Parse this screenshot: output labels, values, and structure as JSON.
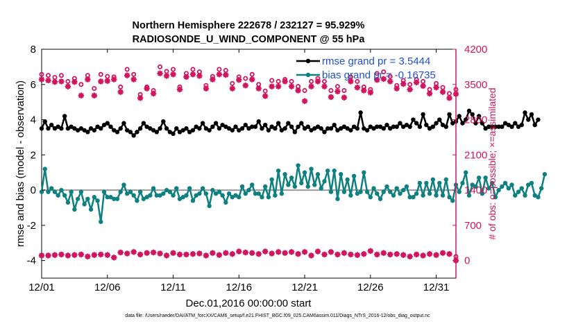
{
  "titles": {
    "line1": "Northern Hemisphere 222678 / 232127 = 95.929%",
    "line2": "RADIOSONDE_U_WIND_COMPONENT @ 55 hPa"
  },
  "axes": {
    "ylabel_left": "rmse and bias (model - observation)",
    "ylabel_right": "# of obs: o=possible; ×=assimilated",
    "xlabel": "Dec.01,2016 00:00:00 start",
    "footer": "data file: /Users/raeder/DAI/ATM_forcXX/CAM6_setup/f.e21.FHIST_BGC.f09_025.CAM6assim.011/Diags_NTrS_2016-12/obs_diag_output.nc"
  },
  "legend": {
    "rmse": "rmse grand pr = 3.5444",
    "bias": "bias grand pr = -0.16735"
  },
  "colors": {
    "rmse": "#000000",
    "bias": "#0e8080",
    "obs": "#d0155e",
    "zero_line": "#9a9a9a",
    "legend_text": "#1f4fd8"
  },
  "chart_data": {
    "type": "line",
    "title": "Northern Hemisphere 222678 / 232127 = 95.929% | RADIOSONDE_U_WIND_COMPONENT @ 55 hPa",
    "xlabel": "Dec.01,2016 00:00:00 start",
    "ylabel": "rmse and bias (model - observation)",
    "y2label": "# of obs: o=possible; ×=assimilated",
    "xlim": [
      1,
      32.5
    ],
    "ylim": [
      -5,
      8
    ],
    "y2lim": [
      -350,
      4200
    ],
    "x_ticks": [
      1,
      6,
      11,
      16,
      21,
      26,
      31
    ],
    "x_tick_labels": [
      "12/01",
      "12/06",
      "12/11",
      "12/16",
      "12/21",
      "12/26",
      "12/31"
    ],
    "y_ticks": [
      -4,
      -2,
      0,
      2,
      4,
      6,
      8
    ],
    "y_tick_labels": [
      "-4",
      "-2",
      "0",
      "2",
      "4",
      "6",
      "8"
    ],
    "y2_ticks": [
      0,
      700,
      1400,
      2100,
      2800,
      3500,
      4200
    ],
    "y2_tick_labels": [
      "0",
      "700",
      "1400",
      "2100",
      "2800",
      "3500",
      "4200"
    ],
    "series": [
      {
        "name": "rmse",
        "axis": "left",
        "start": 1,
        "step": 0.25,
        "values": [
          3.5,
          3.9,
          3.5,
          3.7,
          3.5,
          3.6,
          3.5,
          4.2,
          3.5,
          3.6,
          3.5,
          3.4,
          3.5,
          3.4,
          3.3,
          3.5,
          3.4,
          3.6,
          3.5,
          3.7,
          3.8,
          3.6,
          3.4,
          3.3,
          3.5,
          3.8,
          3.4,
          3.3,
          3.1,
          3.3,
          3.5,
          3.8,
          3.6,
          3.5,
          3.4,
          3.3,
          3.5,
          3.9,
          3.5,
          3.3,
          3.2,
          3.5,
          3.3,
          3.4,
          3.5,
          3.3,
          3.4,
          3.6,
          3.5,
          3.8,
          3.5,
          3.4,
          3.6,
          3.8,
          3.5,
          3.7,
          3.6,
          3.5,
          3.4,
          3.6,
          3.4,
          3.5,
          3.7,
          3.5,
          3.6,
          3.6,
          3.9,
          3.5,
          3.7,
          3.4,
          3.6,
          3.5,
          3.8,
          3.4,
          3.5,
          3.8,
          3.6,
          3.3,
          3.6,
          3.8,
          3.5,
          3.6,
          3.4,
          3.5,
          3.6,
          3.5,
          3.3,
          3.5,
          3.5,
          3.7,
          3.4,
          3.5,
          3.6,
          3.5,
          3.4,
          3.6,
          3.5,
          4.4,
          3.5,
          3.4,
          3.6,
          3.5,
          3.6,
          3.6,
          3.5,
          3.7,
          3.5,
          3.6,
          3.6,
          3.8,
          3.6,
          3.7,
          3.6,
          4.0,
          3.8,
          3.6,
          4.3,
          3.7,
          3.5,
          3.6,
          3.8,
          4.0,
          3.7,
          3.6,
          4.3,
          3.8,
          3.9,
          4.2,
          3.8,
          4.0,
          4.5,
          4.3,
          3.8,
          4.2,
          3.8,
          3.5,
          3.6,
          3.6,
          3.6,
          3.6,
          3.6,
          3.8,
          3.7,
          3.6,
          3.8,
          3.6,
          3.7,
          4.4,
          4.0,
          4.3,
          3.7,
          4.0
        ]
      },
      {
        "name": "bias",
        "axis": "left",
        "start": 1,
        "step": 0.25,
        "values": [
          -0.1,
          1.2,
          -0.1,
          0.1,
          -0.1,
          -0.3,
          0.0,
          -0.3,
          -0.7,
          -0.1,
          -1.1,
          -0.5,
          -0.1,
          -0.8,
          -0.5,
          -1.1,
          -0.4,
          -0.6,
          -1.8,
          -0.1,
          -0.4,
          -0.4,
          -0.5,
          -0.5,
          -0.1,
          0.3,
          -0.2,
          -0.1,
          -0.3,
          -0.6,
          -0.1,
          -0.5,
          -0.4,
          -0.3,
          0.1,
          -0.3,
          -0.3,
          -0.2,
          0.0,
          -0.1,
          -0.3,
          0.1,
          -0.5,
          -0.4,
          -0.3,
          0.1,
          -0.6,
          -0.3,
          -0.2,
          0.1,
          -0.2,
          -0.9,
          0.0,
          -0.2,
          -0.1,
          -0.3,
          -0.7,
          -0.2,
          -0.4,
          -0.3,
          -0.4,
          0.2,
          -0.2,
          0.0,
          0.3,
          -0.2,
          -0.2,
          -0.4,
          0.2,
          -0.4,
          0.6,
          -0.3,
          1.1,
          -0.2,
          0.9,
          0.3,
          0.7,
          0.2,
          1.4,
          0.4,
          1.0,
          0.2,
          1.2,
          0.3,
          0.9,
          0.1,
          0.5,
          1.1,
          -0.1,
          1.1,
          -0.5,
          0.9,
          -0.1,
          0.6,
          -0.3,
          0.8,
          -0.2,
          -0.1,
          1.0,
          -0.1,
          -0.4,
          0.1,
          -0.2,
          -0.5,
          -0.1,
          0.2,
          -0.1,
          -0.3,
          0.1,
          -0.2,
          0.0,
          0.2,
          -0.4,
          -0.4,
          -0.2,
          0.4,
          -0.3,
          0.4,
          -0.2,
          0.6,
          -0.3,
          0.4,
          -0.3,
          0.6,
          -0.4,
          -0.6,
          0.3,
          -0.1,
          0.4,
          1.0,
          -0.3,
          0.3,
          0.2,
          0.7,
          -0.2,
          0.7,
          0.1,
          0.4,
          -0.4,
          0.0,
          0.2,
          0.4,
          0.1,
          0.3,
          -0.3,
          -0.1,
          0.1,
          -0.3,
          0.3,
          0.4,
          -0.3,
          -0.4,
          0.1,
          0.9
        ]
      },
      {
        "name": "obs_possible",
        "axis": "right",
        "start": 1,
        "step": 0.5,
        "values": [
          3700,
          3680,
          3640,
          3680,
          3560,
          3620,
          3500,
          3680,
          3420,
          3700,
          3660,
          3650,
          3450,
          3800,
          3700,
          3300,
          3450,
          3380,
          3850,
          3760,
          3800,
          3450,
          3720,
          3800,
          3750,
          3480,
          3660,
          3800,
          3780,
          3520,
          3650,
          3620,
          3700,
          3500,
          3370,
          3580,
          3560,
          3600,
          3560,
          3460,
          3380,
          3560,
          3620,
          3560,
          3380,
          3460,
          3380,
          3650,
          3560,
          3450,
          3400,
          3720,
          3750,
          3660,
          3480,
          3580,
          3500,
          3600,
          3560,
          3400,
          3520,
          3440,
          3320,
          3400
        ]
      },
      {
        "name": "obs_assimilated",
        "axis": "right",
        "start": 1,
        "step": 0.5,
        "values": [
          3600,
          3580,
          3550,
          3560,
          3460,
          3550,
          3280,
          3600,
          3280,
          3560,
          3570,
          3600,
          3350,
          3680,
          3600,
          3230,
          3420,
          3320,
          3720,
          3670,
          3700,
          3400,
          3650,
          3700,
          3670,
          3420,
          3600,
          3700,
          3690,
          3420,
          3590,
          3480,
          3600,
          3420,
          3270,
          3460,
          3460,
          3560,
          3460,
          3380,
          3170,
          3460,
          3560,
          3460,
          3250,
          3360,
          3240,
          3560,
          3440,
          3380,
          3340,
          3590,
          3610,
          3560,
          3420,
          3510,
          3400,
          3540,
          3470,
          3320,
          3440,
          3350,
          3230,
          3310
        ]
      },
      {
        "name": "obs_low_possible",
        "axis": "right",
        "start": 1,
        "step": 0.5,
        "values": [
          100,
          100,
          110,
          120,
          100,
          110,
          120,
          80,
          110,
          120,
          110,
          60,
          160,
          140,
          170,
          120,
          150,
          160,
          140,
          100,
          150,
          120,
          120,
          130,
          140,
          100,
          150,
          110,
          150,
          130,
          180,
          160,
          150,
          130,
          180,
          140,
          170,
          150,
          170,
          130,
          170,
          100,
          180,
          120,
          170,
          120,
          150,
          120,
          110,
          130,
          190,
          120,
          150,
          120,
          130,
          110,
          80,
          120,
          100,
          130,
          110,
          150,
          130,
          80
        ]
      },
      {
        "name": "obs_low_assimilated",
        "axis": "right",
        "start": 1,
        "step": 0.5,
        "values": [
          100,
          100,
          110,
          120,
          100,
          110,
          120,
          80,
          110,
          120,
          110,
          60,
          160,
          140,
          170,
          120,
          150,
          160,
          140,
          100,
          150,
          120,
          120,
          130,
          140,
          100,
          150,
          110,
          150,
          130,
          180,
          160,
          150,
          130,
          180,
          140,
          170,
          150,
          170,
          130,
          170,
          100,
          180,
          120,
          170,
          120,
          150,
          120,
          110,
          130,
          190,
          120,
          150,
          120,
          130,
          110,
          80,
          120,
          100,
          130,
          110,
          150,
          130,
          0
        ]
      }
    ]
  }
}
